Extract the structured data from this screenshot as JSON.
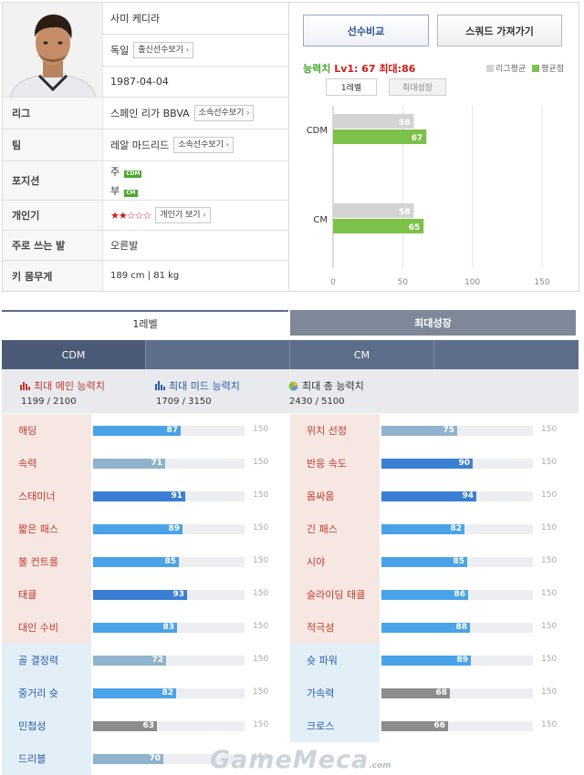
{
  "player": {
    "name": "사미 케디라",
    "nationality": "독일",
    "nationality_btn": "출신선수보기",
    "birth": "1987-04-04",
    "rows": [
      {
        "label": "리그",
        "value": "스페인 리가 BBVA",
        "btn": "소속선수보기"
      },
      {
        "label": "팀",
        "value": "레알 마드리드",
        "btn": "소속선수보기"
      },
      {
        "label": "포지션",
        "main_prefix": "주",
        "main_pos": "CDM",
        "sub_prefix": "부",
        "sub_pos": "CM"
      },
      {
        "label": "개인기",
        "value": "★★☆☆☆",
        "btn": "개인기 보기"
      },
      {
        "label": "주로 쓰는 발",
        "value": "오른발"
      },
      {
        "label": "키 몸무게",
        "value": "189 cm | 81 kg"
      }
    ]
  },
  "actions": {
    "compare": "선수비교",
    "squad": "스쿼드 가져가기"
  },
  "stat_header": {
    "label": "능력치",
    "lv1": "Lv1: 67",
    "max": "최대:86"
  },
  "legend": {
    "league": "리그평균",
    "avg": "평균점",
    "league_color": "#d4d4d4",
    "avg_color": "#7cc24a"
  },
  "chart_tabs": {
    "lv1": "1레벨",
    "max": "최대성장"
  },
  "chart_data": {
    "type": "bar",
    "orientation": "horizontal",
    "categories": [
      "CDM",
      "CM"
    ],
    "series": [
      {
        "name": "리그평균",
        "values": [
          58,
          58
        ],
        "color": "#d4d4d4"
      },
      {
        "name": "평균점",
        "values": [
          67,
          65
        ],
        "color": "#7cc24a"
      }
    ],
    "xlim": [
      0,
      150
    ],
    "xticks": [
      "0",
      "50",
      "100",
      "150"
    ],
    "grid": true
  },
  "level_tabs": {
    "lv1": "1레벨",
    "max": "최대성장"
  },
  "positions": [
    "CDM",
    "",
    "CM",
    ""
  ],
  "summary": {
    "main": {
      "title": "최대 메인 능력치",
      "value": "1199 / 2100"
    },
    "mid": {
      "title": "최대 미드 능력치",
      "value": "1709 / 3150"
    },
    "total": {
      "title": "최대 총 능력치",
      "value": "2430 / 5100"
    }
  },
  "attr_max": "150",
  "attributes_left": [
    {
      "name": "해딩",
      "value": 87,
      "color": "#4aa3e8",
      "tone": "warm"
    },
    {
      "name": "속력",
      "value": 71,
      "color": "#8fb3cc",
      "tone": "warm"
    },
    {
      "name": "스태미너",
      "value": 91,
      "color": "#3a7fd4",
      "tone": "warm"
    },
    {
      "name": "짧은 패스",
      "value": 89,
      "color": "#4aa3e8",
      "tone": "warm"
    },
    {
      "name": "볼 컨트롤",
      "value": 85,
      "color": "#4aa3e8",
      "tone": "warm"
    },
    {
      "name": "태클",
      "value": 93,
      "color": "#3a7fd4",
      "tone": "warm"
    },
    {
      "name": "대인 수비",
      "value": 83,
      "color": "#4aa3e8",
      "tone": "warm"
    },
    {
      "name": "골 결정력",
      "value": 72,
      "color": "#8fb3cc",
      "tone": "cool"
    },
    {
      "name": "중거리 슛",
      "value": 82,
      "color": "#4aa3e8",
      "tone": "cool"
    },
    {
      "name": "민첩성",
      "value": 63,
      "color": "#8c8c8c",
      "tone": "cool"
    },
    {
      "name": "드리블",
      "value": 70,
      "color": "#8fb3cc",
      "tone": "cool"
    }
  ],
  "attributes_right": [
    {
      "name": "위치 선정",
      "value": 75,
      "color": "#8fb3cc",
      "tone": "warm"
    },
    {
      "name": "반응 속도",
      "value": 90,
      "color": "#3a7fd4",
      "tone": "warm"
    },
    {
      "name": "몸싸움",
      "value": 94,
      "color": "#3a7fd4",
      "tone": "warm"
    },
    {
      "name": "긴 패스",
      "value": 82,
      "color": "#4aa3e8",
      "tone": "warm"
    },
    {
      "name": "시야",
      "value": 85,
      "color": "#4aa3e8",
      "tone": "warm"
    },
    {
      "name": "슬라이딩 태클",
      "value": 86,
      "color": "#4aa3e8",
      "tone": "warm"
    },
    {
      "name": "적극성",
      "value": 88,
      "color": "#4aa3e8",
      "tone": "warm"
    },
    {
      "name": "슛 파워",
      "value": 89,
      "color": "#4aa3e8",
      "tone": "cool"
    },
    {
      "name": "가속력",
      "value": 68,
      "color": "#8c8c8c",
      "tone": "cool"
    },
    {
      "name": "크로스",
      "value": 66,
      "color": "#8c8c8c",
      "tone": "cool"
    }
  ],
  "watermark": {
    "brand": "GameMeca",
    "suffix": ".com"
  }
}
